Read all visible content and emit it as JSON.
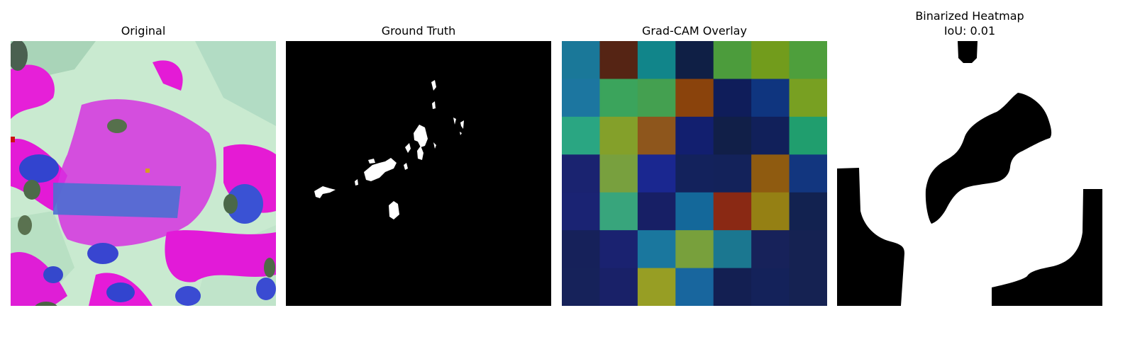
{
  "panels": {
    "original": {
      "title": "Original"
    },
    "ground_truth": {
      "title": "Ground Truth"
    },
    "gradcam": {
      "title": "Grad-CAM Overlay",
      "grid_colors": [
        [
          "#1a7899",
          "#552414",
          "#11858a",
          "#0f1f45",
          "#4c9c3c",
          "#729c1c",
          "#4e9f3c"
        ],
        [
          "#1c76a0",
          "#3ba45c",
          "#44a050",
          "#8a430c",
          "#0f1d5a",
          "#0f357f",
          "#78a022"
        ],
        [
          "#2aa682",
          "#84a02a",
          "#8e561c",
          "#121f6f",
          "#111f48",
          "#11205a",
          "#209e6e"
        ],
        [
          "#1a2370",
          "#78a03e",
          "#1a2790",
          "#13225c",
          "#13225a",
          "#8f5b10",
          "#12367f"
        ],
        [
          "#1a2373",
          "#38a57c",
          "#171f65",
          "#14689a",
          "#8a2914",
          "#958014",
          "#122250"
        ],
        [
          "#16215a",
          "#1a2270",
          "#1a779e",
          "#78a03c",
          "#1b7790",
          "#17225a",
          "#152252"
        ],
        [
          "#16225a",
          "#192168",
          "#979e24",
          "#18669e",
          "#131f52",
          "#14225a",
          "#152252"
        ]
      ]
    },
    "binarized": {
      "title": "Binarized Heatmap",
      "iou": "IoU: 0.01"
    }
  }
}
